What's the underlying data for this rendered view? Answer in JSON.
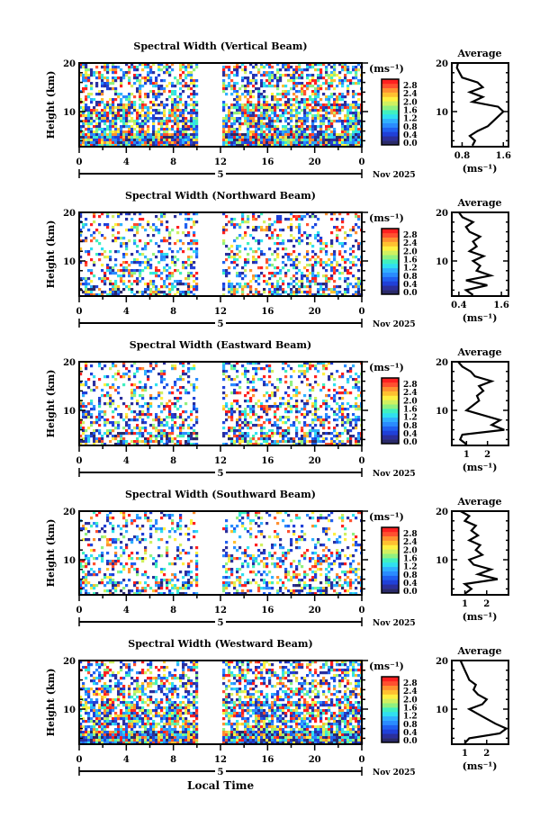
{
  "chart_data": [
    {
      "type": "heatmap",
      "title": "Spectral Width (Vertical Beam)",
      "ylabel": "Height (km)",
      "yticks": [
        "20",
        "10"
      ],
      "xticks": [
        "0",
        "4",
        "8",
        "12",
        "16",
        "20",
        "0"
      ],
      "date_day": "5",
      "date_label": "Nov 2025",
      "colorbar_unit": "(ms⁻¹)",
      "colorbar_ticks": [
        "2.8",
        "2.4",
        "2.0",
        "1.6",
        "1.2",
        "0.8",
        "0.4",
        "0.0"
      ],
      "density": 0.85,
      "gap_hours": [
        10,
        12
      ],
      "average": {
        "title": "Average",
        "yticks": [
          "20",
          "10"
        ],
        "xticks": [
          "0.8",
          "1.6"
        ],
        "xlim": [
          0.6,
          1.7
        ],
        "xlabel": "(ms⁻¹)",
        "heights": [
          3,
          4,
          5,
          6,
          7,
          8,
          9,
          10,
          11,
          12,
          13,
          14,
          15,
          16,
          17,
          18,
          19,
          20
        ],
        "values": [
          1.0,
          1.05,
          0.95,
          1.1,
          1.3,
          1.4,
          1.5,
          1.6,
          1.5,
          1.0,
          1.2,
          0.95,
          1.2,
          1.1,
          0.8,
          0.75,
          0.7,
          0.72
        ]
      }
    },
    {
      "type": "heatmap",
      "title": "Spectral Width (Northward Beam)",
      "ylabel": "Height (km)",
      "yticks": [
        "20",
        "10"
      ],
      "xticks": [
        "0",
        "4",
        "8",
        "12",
        "16",
        "20",
        "0"
      ],
      "date_day": "5",
      "date_label": "Nov 2025",
      "colorbar_unit": "(ms⁻¹)",
      "colorbar_ticks": [
        "2.8",
        "2.4",
        "2.0",
        "1.6",
        "1.2",
        "0.8",
        "0.4",
        "0.0"
      ],
      "density": 0.45,
      "gap_hours": [
        10,
        12
      ],
      "average": {
        "title": "Average",
        "yticks": [
          "20",
          "10"
        ],
        "xticks": [
          "0.4",
          "1.6"
        ],
        "xlim": [
          0.2,
          1.8
        ],
        "xlabel": "(ms⁻¹)",
        "heights": [
          3,
          4,
          5,
          6,
          7,
          8,
          9,
          10,
          11,
          12,
          13,
          14,
          15,
          16,
          17,
          18,
          19,
          20
        ],
        "values": [
          0.8,
          0.6,
          1.2,
          0.6,
          1.3,
          0.9,
          1.0,
          0.8,
          1.1,
          0.7,
          0.9,
          0.8,
          1.0,
          0.7,
          0.6,
          0.8,
          0.5,
          0.4
        ]
      }
    },
    {
      "type": "heatmap",
      "title": "Spectral Width (Eastward Beam)",
      "ylabel": "Height (km)",
      "yticks": [
        "20",
        "10"
      ],
      "xticks": [
        "0",
        "4",
        "8",
        "12",
        "16",
        "20",
        "0"
      ],
      "date_day": "5",
      "date_label": "Nov 2025",
      "colorbar_unit": "(ms⁻¹)",
      "colorbar_ticks": [
        "2.8",
        "2.4",
        "2.0",
        "1.6",
        "1.2",
        "0.8",
        "0.4",
        "0.0"
      ],
      "density": 0.5,
      "gap_hours": [
        10,
        12
      ],
      "average": {
        "title": "Average",
        "yticks": [
          "20",
          "10"
        ],
        "xticks": [
          "1",
          "2"
        ],
        "xlim": [
          0.3,
          3.0
        ],
        "xlabel": "(ms⁻¹)",
        "heights": [
          3,
          4,
          5,
          6,
          7,
          8,
          9,
          10,
          11,
          12,
          13,
          14,
          15,
          16,
          17,
          18,
          19,
          20
        ],
        "values": [
          1.0,
          0.7,
          0.8,
          2.8,
          2.2,
          2.6,
          1.8,
          1.0,
          1.3,
          1.6,
          1.5,
          1.8,
          1.6,
          2.2,
          1.4,
          1.2,
          0.8,
          0.6
        ]
      }
    },
    {
      "type": "heatmap",
      "title": "Spectral Width (Southward Beam)",
      "ylabel": "Height (km)",
      "yticks": [
        "20",
        "10"
      ],
      "xticks": [
        "0",
        "4",
        "8",
        "12",
        "16",
        "20",
        "0"
      ],
      "date_day": "5",
      "date_label": "Nov 2025",
      "colorbar_unit": "(ms⁻¹)",
      "colorbar_ticks": [
        "2.8",
        "2.4",
        "2.0",
        "1.6",
        "1.2",
        "0.8",
        "0.4",
        "0.0"
      ],
      "density": 0.4,
      "gap_hours": [
        10,
        12
      ],
      "average": {
        "title": "Average",
        "yticks": [
          "20",
          "10"
        ],
        "xticks": [
          "1",
          "2"
        ],
        "xlim": [
          0.4,
          3.0
        ],
        "xlabel": "(ms⁻¹)",
        "heights": [
          3,
          4,
          5,
          6,
          7,
          8,
          9,
          10,
          11,
          12,
          13,
          14,
          15,
          16,
          17,
          18,
          19,
          20
        ],
        "values": [
          1.0,
          1.3,
          1.0,
          2.5,
          1.6,
          2.2,
          1.4,
          1.2,
          1.8,
          1.5,
          1.7,
          1.2,
          1.6,
          1.3,
          1.5,
          1.0,
          1.2,
          0.8
        ]
      }
    },
    {
      "type": "heatmap",
      "title": "Spectral Width (Westward Beam)",
      "ylabel": "Height (km)",
      "yticks": [
        "20",
        "10"
      ],
      "xticks": [
        "0",
        "4",
        "8",
        "12",
        "16",
        "20",
        "0"
      ],
      "date_day": "5",
      "date_label": "Nov 2025",
      "colorbar_unit": "(ms⁻¹)",
      "colorbar_ticks": [
        "2.8",
        "2.4",
        "2.0",
        "1.6",
        "1.2",
        "0.8",
        "0.4",
        "0.0"
      ],
      "density": 0.8,
      "gap_hours": [
        10,
        12
      ],
      "average": {
        "title": "Average",
        "yticks": [
          "20",
          "10"
        ],
        "xticks": [
          "1",
          "2"
        ],
        "xlim": [
          0.4,
          3.0
        ],
        "xlabel": "(ms⁻¹)",
        "heights": [
          3,
          4,
          5,
          6,
          7,
          8,
          9,
          10,
          11,
          12,
          13,
          14,
          15,
          16,
          17,
          18,
          19,
          20
        ],
        "values": [
          1.0,
          1.2,
          2.6,
          2.9,
          2.4,
          2.0,
          1.6,
          1.2,
          1.8,
          2.0,
          1.6,
          1.4,
          1.5,
          1.2,
          1.1,
          1.0,
          0.9,
          0.8
        ]
      }
    }
  ],
  "xlabel": "Local Time",
  "colors": {
    "scale": [
      "#2a2a6a",
      "#2b2f9c",
      "#2040d8",
      "#2060f0",
      "#2a8cff",
      "#30b0ff",
      "#30e0f0",
      "#40f0c0",
      "#90f080",
      "#d0f060",
      "#fff040",
      "#ffc030",
      "#ff9030",
      "#ff5030",
      "#ff2020"
    ]
  }
}
